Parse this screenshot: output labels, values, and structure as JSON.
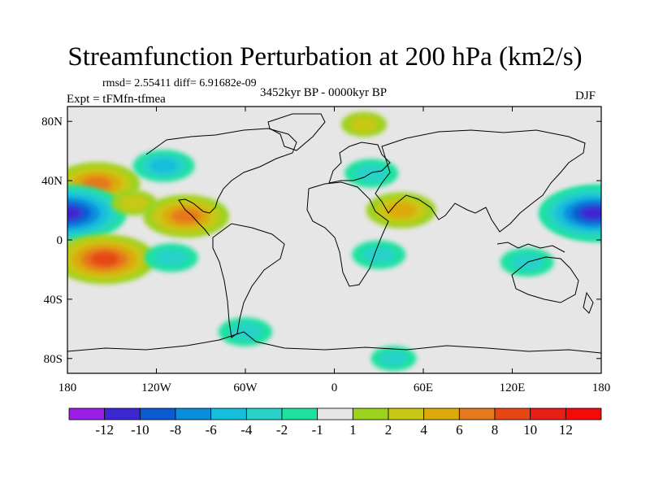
{
  "chart_data": {
    "type": "heatmap",
    "title": "Streamfunction Perturbation at 200 hPa (km2/s)",
    "stats_text": "rmsd= 2.55411  diff= 6.91682e-09",
    "period": "3452kyr BP - 0000kyr BP",
    "experiment": "Expt = tFMfn-tfmea",
    "season": "DJF",
    "xlim": [
      -180,
      180
    ],
    "ylim": [
      -90,
      90
    ],
    "x_ticks": [
      {
        "value": -180,
        "label": "180"
      },
      {
        "value": -120,
        "label": "120W"
      },
      {
        "value": -60,
        "label": "60W"
      },
      {
        "value": 0,
        "label": "0"
      },
      {
        "value": 60,
        "label": "60E"
      },
      {
        "value": 120,
        "label": "120E"
      },
      {
        "value": 180,
        "label": "180"
      }
    ],
    "y_ticks": [
      {
        "value": 80,
        "label": "80N"
      },
      {
        "value": 40,
        "label": "40N"
      },
      {
        "value": 0,
        "label": "0"
      },
      {
        "value": -40,
        "label": "40S"
      },
      {
        "value": -80,
        "label": "80S"
      }
    ],
    "colorbar": {
      "levels": [
        -12,
        -10,
        -8,
        -6,
        -4,
        -2,
        -1,
        1,
        2,
        4,
        6,
        8,
        10,
        12
      ],
      "labels": [
        "-12",
        "-10",
        "-8",
        "-6",
        "-4",
        "-2",
        "-1",
        "1",
        "2",
        "4",
        "6",
        "8",
        "10",
        "12"
      ],
      "colors": [
        "#9b1ee6",
        "#3c28d2",
        "#0a5ad2",
        "#0a8cdc",
        "#14bedc",
        "#28d2c8",
        "#1ee1a0",
        "#e6e6e6",
        "#9bd21e",
        "#c8c814",
        "#dcaa0a",
        "#e6781e",
        "#e64614",
        "#e61e14",
        "#f50a0a"
      ]
    },
    "anomalies": [
      {
        "name": "north-pacific-positive",
        "lon": -160,
        "lat": 38,
        "value": 7
      },
      {
        "name": "dateline-negative",
        "lon": -180,
        "lat": 18,
        "value": -11
      },
      {
        "name": "subtropical-pacific-ridge",
        "lon": -135,
        "lat": 25,
        "value": 2
      },
      {
        "name": "west-atlantic-negative",
        "lon": -115,
        "lat": 50,
        "value": -4
      },
      {
        "name": "central-america-positive",
        "lon": -100,
        "lat": 16,
        "value": 7
      },
      {
        "name": "south-pacific-positive",
        "lon": -155,
        "lat": -13,
        "value": 9
      },
      {
        "name": "tropical-pacific-negative",
        "lon": -110,
        "lat": -12,
        "value": -3
      },
      {
        "name": "arctic-positive",
        "lon": 20,
        "lat": 78,
        "value": 2
      },
      {
        "name": "europe-negative",
        "lon": 25,
        "lat": 45,
        "value": -3
      },
      {
        "name": "middle-east-positive",
        "lon": 45,
        "lat": 20,
        "value": 5
      },
      {
        "name": "africa-negative",
        "lon": 30,
        "lat": -10,
        "value": -3
      },
      {
        "name": "west-pacific-negative",
        "lon": 175,
        "lat": 18,
        "value": -10
      },
      {
        "name": "indian-ocean-negative",
        "lon": 130,
        "lat": -15,
        "value": -3
      },
      {
        "name": "southern-ocean-negative",
        "lon": -60,
        "lat": -62,
        "value": -3
      },
      {
        "name": "antarctic-negative",
        "lon": 40,
        "lat": -80,
        "value": -2
      }
    ]
  }
}
